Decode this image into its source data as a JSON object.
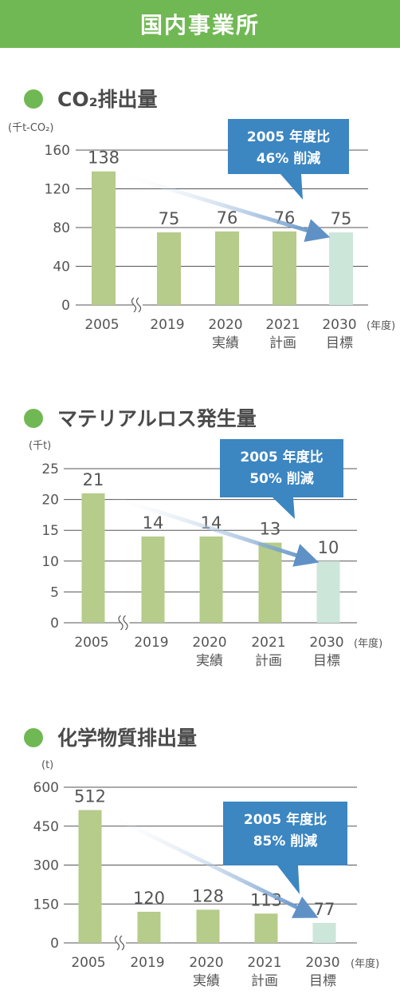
{
  "header": {
    "title": "国内事業所"
  },
  "colors": {
    "banner": "#70b853",
    "bullet": "#70b853",
    "bar": "#b5cc8a",
    "bar_target": "#cce6da",
    "callout": "#3c86c1",
    "arrow": "#5f91c6"
  },
  "year_unit": "(年度)",
  "chart_data": [
    {
      "type": "bar",
      "title": "CO₂排出量",
      "unit": "(千t-CO₂)",
      "categories": [
        "2005",
        "2019",
        "2020",
        "2021",
        "2030"
      ],
      "category_sublabels": [
        "",
        "",
        "実績",
        "計画",
        "目標"
      ],
      "values": [
        138,
        75,
        76,
        76,
        75
      ],
      "ylim": [
        0,
        160
      ],
      "yticks": [
        "0",
        "40",
        "80",
        "120",
        "160"
      ],
      "grid": true,
      "axis_break_after": "2005",
      "callout": {
        "line1": "2005 年度比",
        "line2": "46% 削減"
      }
    },
    {
      "type": "bar",
      "title": "マテリアルロス発生量",
      "unit": "(千t)",
      "categories": [
        "2005",
        "2019",
        "2020",
        "2021",
        "2030"
      ],
      "category_sublabels": [
        "",
        "",
        "実績",
        "計画",
        "目標"
      ],
      "values": [
        21,
        14,
        14,
        13,
        10
      ],
      "ylim": [
        0,
        25
      ],
      "yticks": [
        "0",
        "5",
        "10",
        "15",
        "20",
        "25"
      ],
      "grid": true,
      "axis_break_after": "2005",
      "callout": {
        "line1": "2005 年度比",
        "line2": "50% 削減"
      }
    },
    {
      "type": "bar",
      "title": "化学物質排出量",
      "unit": "(t)",
      "categories": [
        "2005",
        "2019",
        "2020",
        "2021",
        "2030"
      ],
      "category_sublabels": [
        "",
        "",
        "実績",
        "計画",
        "目標"
      ],
      "values": [
        512,
        120,
        128,
        113,
        77
      ],
      "ylim": [
        0,
        600
      ],
      "yticks": [
        "0",
        "150",
        "300",
        "450",
        "600"
      ],
      "grid": true,
      "axis_break_after": "2005",
      "callout": {
        "line1": "2005 年度比",
        "line2": "85% 削減"
      }
    }
  ]
}
